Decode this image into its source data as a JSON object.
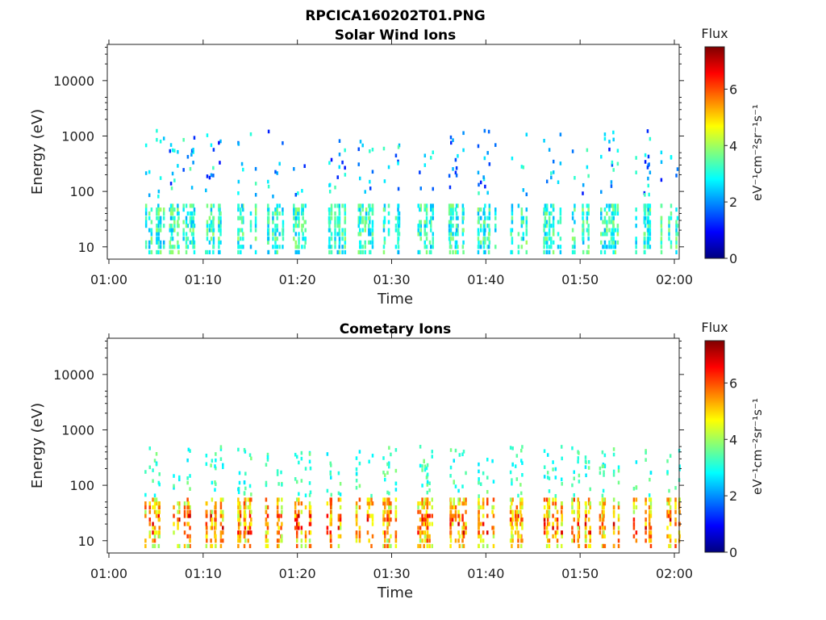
{
  "figure": {
    "title": "RPCICA160202T01.PNG"
  },
  "colorscale": {
    "title": "Flux",
    "unit": "eV⁻¹cm⁻²sr⁻¹s⁻¹",
    "range": [
      0,
      7.5
    ],
    "ticks": [
      "0",
      "2",
      "4",
      "6"
    ],
    "tick_values": [
      0,
      2,
      4,
      6
    ],
    "colors": [
      "#00007f",
      "#0000ff",
      "#007fff",
      "#00ffff",
      "#7fff7f",
      "#ffff00",
      "#ff7f00",
      "#ff0000",
      "#7f0000"
    ]
  },
  "chart_data": [
    {
      "type": "heatmap",
      "title": "Solar Wind Ions",
      "xlabel": "Time",
      "ylabel": "Energy (eV)",
      "x_ticks": [
        "01:00",
        "01:10",
        "01:20",
        "01:30",
        "01:40",
        "01:50",
        "02:00"
      ],
      "x_tick_values": [
        0,
        10,
        20,
        30,
        40,
        50,
        60
      ],
      "xlim": [
        "01:00",
        "02:00"
      ],
      "y_ticks": [
        "10",
        "100",
        "1000",
        "10000"
      ],
      "y_tick_values": [
        10,
        100,
        1000,
        10000
      ],
      "ylim": [
        6,
        45000
      ],
      "yscale": "log",
      "clusters_minutes": [
        4.5,
        6.5,
        8.0,
        11.0,
        14.5,
        17.5,
        20.5,
        24.0,
        27.0,
        30.0,
        33.5,
        37.0,
        40.0,
        43.5,
        47.0,
        50.0,
        53.0,
        56.5,
        59.5
      ],
      "flux_levels": "mostly 2–4 (blue/cyan/green) at 10–60 eV with sparse points 100–2000 eV",
      "seed": 17,
      "intensity": 0.35
    },
    {
      "type": "heatmap",
      "title": "Cometary Ions",
      "xlabel": "Time",
      "ylabel": "Energy (eV)",
      "x_ticks": [
        "01:00",
        "01:10",
        "01:20",
        "01:30",
        "01:40",
        "01:50",
        "02:00"
      ],
      "x_tick_values": [
        0,
        10,
        20,
        30,
        40,
        50,
        60
      ],
      "xlim": [
        "01:00",
        "02:00"
      ],
      "y_ticks": [
        "10",
        "100",
        "1000",
        "10000"
      ],
      "y_tick_values": [
        10,
        100,
        1000,
        10000
      ],
      "ylim": [
        6,
        45000
      ],
      "yscale": "log",
      "clusters_minutes": [
        4.5,
        7.5,
        11.0,
        14.5,
        17.5,
        20.5,
        24.0,
        27.0,
        30.0,
        33.5,
        37.0,
        40.0,
        43.5,
        47.0,
        50.0,
        53.0,
        56.5,
        59.5
      ],
      "flux_levels": "4–6 (green/yellow/orange) at 8–40 eV with sparse cyan points 100–500 eV",
      "seed": 91,
      "intensity": 0.7
    }
  ]
}
